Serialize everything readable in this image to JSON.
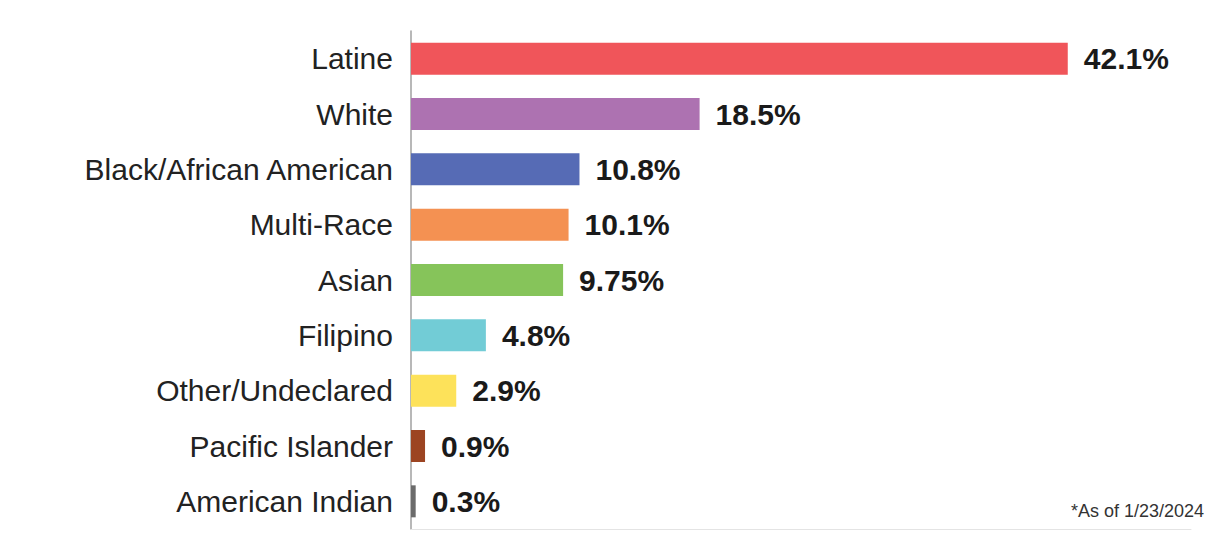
{
  "chart_data": {
    "type": "bar",
    "orientation": "horizontal",
    "categories": [
      "Latine",
      "White",
      "Black/African American",
      "Multi-Race",
      "Asian",
      "Filipino",
      "Other/Undeclared",
      "Pacific Islander",
      "American Indian"
    ],
    "values": [
      42.1,
      18.5,
      10.8,
      10.1,
      9.75,
      4.8,
      2.9,
      0.9,
      0.3
    ],
    "value_labels": [
      "42.1%",
      "18.5%",
      "10.8%",
      "10.1%",
      "9.75%",
      "4.8%",
      "2.9%",
      "0.9%",
      "0.3%"
    ],
    "colors": [
      "#f0555a",
      "#ad72b1",
      "#566bb5",
      "#f49152",
      "#86c45a",
      "#72ccd6",
      "#fde25a",
      "#9c4422",
      "#6b6b6b"
    ],
    "xlim": [
      0,
      50
    ],
    "xticks": [],
    "data_labels": true,
    "tick_labels": "y",
    "grid": false,
    "annotations": [
      "*As of 1/23/2024"
    ]
  }
}
